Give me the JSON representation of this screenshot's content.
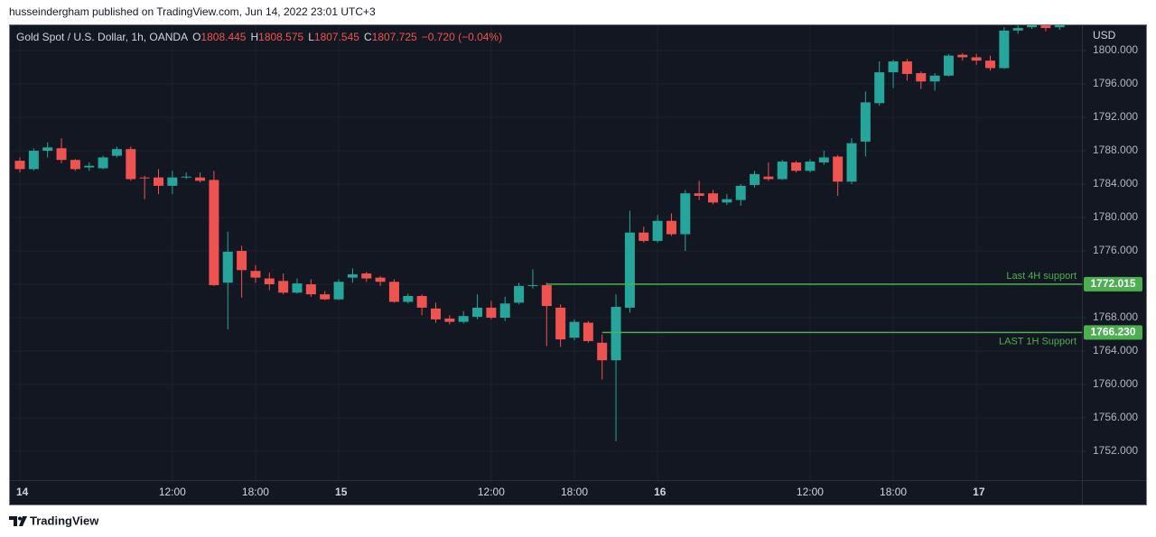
{
  "header": {
    "published": "husseindergham published on TradingView.com, Jun 14, 2022 23:01 UTC+3"
  },
  "footer": {
    "brand": "TradingView"
  },
  "chart_data": {
    "type": "candlestick",
    "title": "Gold Spot / U.S. Dollar, 1h, OANDA",
    "ohlc_legend": {
      "open_label": "O",
      "open": 1808.445,
      "high_label": "H",
      "high": 1808.575,
      "low_label": "L",
      "low": 1807.545,
      "close_label": "C",
      "close": 1807.725,
      "change": "−0.720 (−0.04%)"
    },
    "currency": "USD",
    "categories": [
      "14",
      null,
      null,
      null,
      null,
      null,
      null,
      null,
      null,
      null,
      null,
      "12:00",
      null,
      null,
      null,
      null,
      null,
      "18:00",
      null,
      null,
      null,
      null,
      null,
      "15",
      null,
      null,
      null,
      null,
      null,
      null,
      null,
      null,
      null,
      null,
      "12:00",
      null,
      null,
      null,
      null,
      null,
      "18:00",
      null,
      null,
      null,
      null,
      null,
      "16",
      null,
      null,
      null,
      null,
      null,
      null,
      null,
      null,
      null,
      null,
      "12:00",
      null,
      null,
      null,
      null,
      null,
      "18:00",
      null,
      null,
      null,
      null,
      null,
      "17",
      null,
      null,
      null,
      null,
      null,
      null
    ],
    "open": [
      1786.8,
      1785.8,
      1788.0,
      1788.3,
      1786.9,
      1786.0,
      1785.9,
      1787.4,
      1788.2,
      1784.8,
      1784.8,
      1783.8,
      1784.9,
      1784.8,
      1784.5,
      1772.2,
      1776.0,
      1773.6,
      1772.7,
      1772.4,
      1771.0,
      1772.0,
      1770.8,
      1770.2,
      1772.8,
      1773.3,
      1772.8,
      1772.3,
      1769.9,
      1770.6,
      1769.1,
      1767.9,
      1767.5,
      1768.1,
      1769.2,
      1768.0,
      1769.8,
      1771.8,
      1771.9,
      1769.2,
      1765.6,
      1767.4,
      1765.0,
      1762.9,
      1769.2,
      1778.2,
      1777.2,
      1779.6,
      1778.0,
      1782.9,
      1782.9,
      1781.8,
      1782.1,
      1783.9,
      1784.9,
      1784.6,
      1786.6,
      1785.6,
      1786.6,
      1787.3,
      1784.3,
      1789.1,
      1793.7,
      1797.4,
      1798.7,
      1797.3,
      1796.3,
      1797.0,
      1799.5,
      1799.2,
      1798.8,
      1797.9,
      1802.4,
      1802.8,
      1803.2,
      1802.8
    ],
    "high": [
      1787.2,
      1788.3,
      1789.0,
      1789.5,
      1787.0,
      1786.6,
      1787.4,
      1788.5,
      1788.5,
      1785.0,
      1785.8,
      1785.6,
      1785.4,
      1785.4,
      1785.6,
      1778.3,
      1776.6,
      1774.3,
      1773.4,
      1773.3,
      1772.7,
      1772.6,
      1771.2,
      1772.6,
      1773.9,
      1773.5,
      1773.0,
      1772.6,
      1770.9,
      1770.8,
      1769.8,
      1768.3,
      1768.8,
      1770.8,
      1770.0,
      1770.5,
      1772.2,
      1773.8,
      1772.2,
      1769.6,
      1767.8,
      1767.6,
      1766.0,
      1770.8,
      1780.8,
      1778.9,
      1780.3,
      1780.5,
      1783.3,
      1784.4,
      1783.3,
      1782.8,
      1784.0,
      1785.6,
      1786.6,
      1786.9,
      1786.8,
      1787.0,
      1788.0,
      1787.5,
      1789.5,
      1795.1,
      1798.7,
      1798.9,
      1799.0,
      1797.5,
      1797.3,
      1799.6,
      1799.7,
      1799.6,
      1799.4,
      1802.8,
      1803.0,
      1803.8,
      1803.5,
      1803.4
    ],
    "low": [
      1785.4,
      1785.6,
      1787.2,
      1786.5,
      1785.6,
      1785.6,
      1785.8,
      1787.2,
      1784.4,
      1782.2,
      1782.8,
      1782.8,
      1784.6,
      1784.2,
      1771.8,
      1766.6,
      1770.4,
      1772.2,
      1771.3,
      1770.8,
      1770.9,
      1770.5,
      1770.1,
      1770.1,
      1772.2,
      1772.3,
      1771.8,
      1769.8,
      1769.7,
      1768.3,
      1767.4,
      1767.2,
      1767.3,
      1767.8,
      1767.8,
      1767.6,
      1769.6,
      1771.5,
      1764.6,
      1764.5,
      1765.3,
      1765.0,
      1760.6,
      1753.2,
      1768.6,
      1777.0,
      1777.0,
      1777.8,
      1776.0,
      1782.1,
      1781.6,
      1781.5,
      1781.4,
      1783.6,
      1784.4,
      1784.5,
      1785.4,
      1785.4,
      1786.3,
      1782.6,
      1784.0,
      1787.3,
      1793.4,
      1795.5,
      1796.4,
      1795.4,
      1795.2,
      1796.9,
      1798.8,
      1798.3,
      1797.6,
      1797.8,
      1802.0,
      1802.6,
      1802.3,
      1802.5
    ],
    "close": [
      1785.8,
      1788.0,
      1788.4,
      1786.9,
      1785.8,
      1786.2,
      1787.2,
      1788.2,
      1784.6,
      1784.7,
      1783.8,
      1784.8,
      1784.9,
      1784.4,
      1771.9,
      1775.9,
      1773.7,
      1772.8,
      1772.0,
      1771.0,
      1772.1,
      1770.8,
      1770.2,
      1772.3,
      1773.2,
      1772.7,
      1772.3,
      1769.9,
      1770.6,
      1769.2,
      1767.8,
      1767.5,
      1768.2,
      1769.2,
      1768.0,
      1769.7,
      1771.8,
      1771.9,
      1769.4,
      1765.4,
      1767.5,
      1765.2,
      1762.9,
      1769.3,
      1778.2,
      1777.2,
      1779.6,
      1778.0,
      1782.9,
      1782.6,
      1781.8,
      1782.2,
      1783.8,
      1785.2,
      1784.6,
      1786.7,
      1785.6,
      1786.7,
      1787.2,
      1784.3,
      1788.9,
      1793.8,
      1797.4,
      1798.7,
      1797.2,
      1796.3,
      1797.0,
      1799.4,
      1799.2,
      1798.8,
      1797.9,
      1802.4,
      1802.7,
      1803.3,
      1802.7,
      1803.1
    ],
    "up_color": "#26a69a",
    "down_color": "#ef5350",
    "ylim": [
      1748.54,
      1803.14
    ],
    "yticks": [
      {
        "value": 1752,
        "label": "1752.000"
      },
      {
        "value": 1756,
        "label": "1756.000"
      },
      {
        "value": 1760,
        "label": "1760.000"
      },
      {
        "value": 1764,
        "label": "1764.000"
      },
      {
        "value": 1768,
        "label": "1768.000"
      },
      {
        "value": 1772,
        "label": "1772.000"
      },
      {
        "value": 1776,
        "label": "1776.000"
      },
      {
        "value": 1780,
        "label": "1780.000"
      },
      {
        "value": 1784,
        "label": "1784.000"
      },
      {
        "value": 1788,
        "label": "1788.000"
      },
      {
        "value": 1792,
        "label": "1792.000"
      },
      {
        "value": 1796,
        "label": "1796.000"
      },
      {
        "value": 1800,
        "label": "1800.000"
      }
    ],
    "grid": true,
    "annotations": [
      {
        "text": "Last 4H support",
        "value": 1772.015,
        "label": "1772.015",
        "color": "#4caf50"
      },
      {
        "text": "LAST 1H Support",
        "value": 1766.23,
        "label": "1766.230",
        "color": "#4caf50"
      }
    ]
  }
}
